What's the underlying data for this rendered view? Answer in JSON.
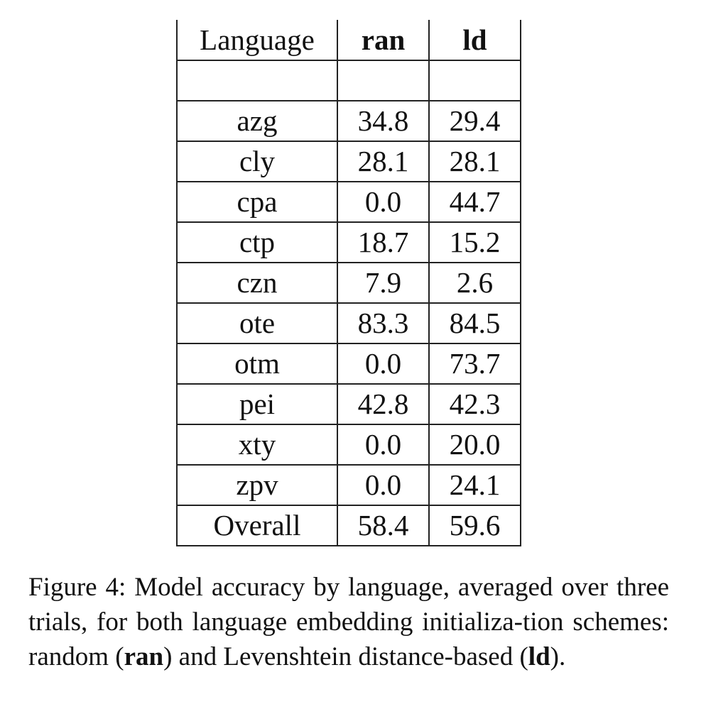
{
  "table": {
    "headers": [
      "Language",
      "ran",
      "ld"
    ],
    "rows": [
      {
        "language": "azg",
        "ran": "34.8",
        "ld": "29.4"
      },
      {
        "language": "cly",
        "ran": "28.1",
        "ld": "28.1"
      },
      {
        "language": "cpa",
        "ran": "0.0",
        "ld": "44.7"
      },
      {
        "language": "ctp",
        "ran": "18.7",
        "ld": "15.2"
      },
      {
        "language": "czn",
        "ran": "7.9",
        "ld": "2.6"
      },
      {
        "language": "ote",
        "ran": "83.3",
        "ld": "84.5"
      },
      {
        "language": "otm",
        "ran": "0.0",
        "ld": "73.7"
      },
      {
        "language": "pei",
        "ran": "42.8",
        "ld": "42.3"
      },
      {
        "language": "xty",
        "ran": "0.0",
        "ld": "20.0"
      },
      {
        "language": "zpv",
        "ran": "0.0",
        "ld": "24.1"
      },
      {
        "language": "Overall",
        "ran": "58.4",
        "ld": "59.6"
      }
    ]
  },
  "caption": {
    "prefix": "Figure 4: Model accuracy by language, averaged over three trials, for both language embedding initializa-tion schemes: random (",
    "bold1": "ran",
    "middle": ") and Levenshtein distance-based (",
    "bold2": "ld",
    "suffix": ")."
  }
}
